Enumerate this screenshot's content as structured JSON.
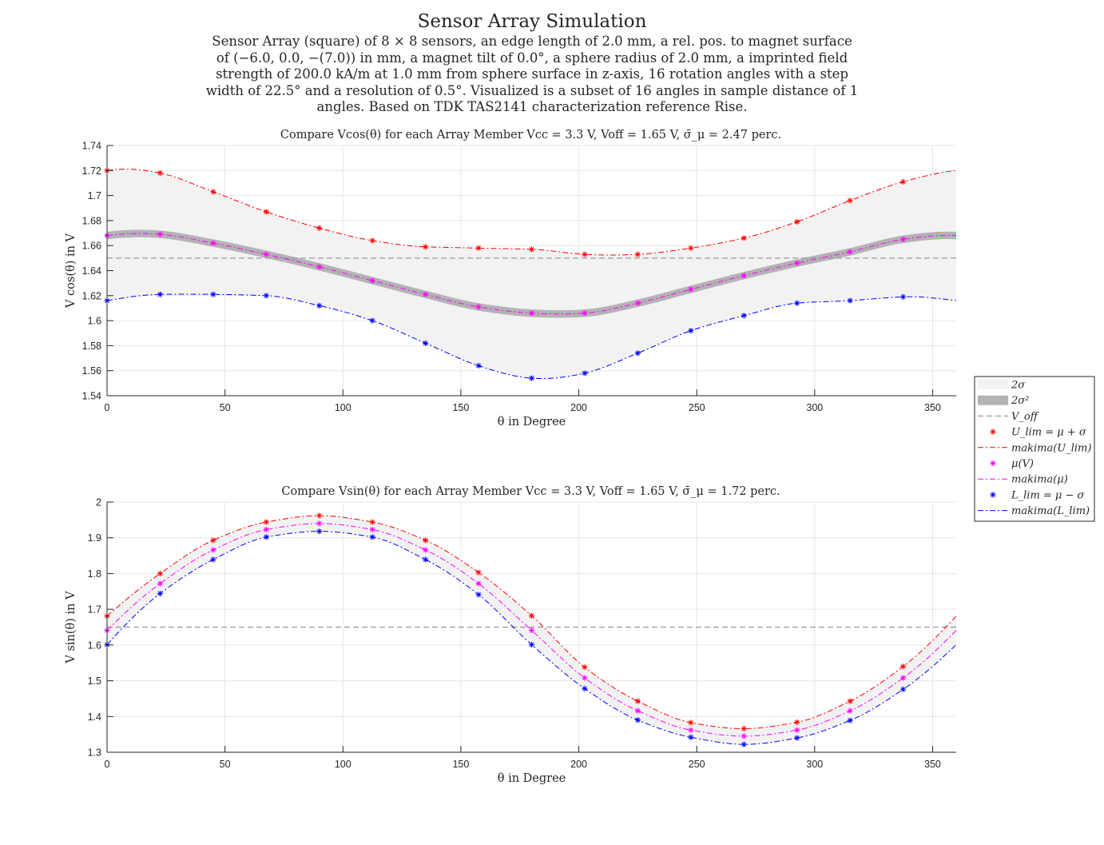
{
  "figure": {
    "title": "Sensor Array Simulation",
    "subtitle": "Sensor Array (square) of 8 × 8 sensors, an edge length of 2.0 mm, a rel. pos. to magnet surface of (−6.0, 0.0, −(7.0)) in mm, a magnet tilt of 0.0°, a sphere radius of 2.0 mm, a imprinted field strength of 200.0 kA/m at 1.0 mm from sphere surface in z-axis, 16 rotation angles with a step width of 22.5° and a resolution of 0.5°. Visualized is a subset of 16 angles in sample distance of 1 angles. Based on TDK TAS2141 characterization reference Rise."
  },
  "legend": {
    "placement": "right-middle",
    "entries": [
      {
        "label": "2σ",
        "kind": "band",
        "color": "#f2f2f2"
      },
      {
        "label": "2σ²",
        "kind": "band",
        "color": "#b3b3b3"
      },
      {
        "label": "V_off",
        "kind": "dashed",
        "color": "#999999"
      },
      {
        "label": "U_lim = μ + σ",
        "kind": "marker",
        "color": "#ff0000"
      },
      {
        "label": "makima(U_lim)",
        "kind": "dashdot",
        "color": "#ff0000"
      },
      {
        "label": "μ(V)",
        "kind": "marker",
        "color": "#ff00ff"
      },
      {
        "label": "makima(μ)",
        "kind": "dashdot",
        "color": "#ff00ff"
      },
      {
        "label": "L_lim = μ − σ",
        "kind": "marker",
        "color": "#0000ff"
      },
      {
        "label": "makima(L_lim)",
        "kind": "dashdot",
        "color": "#0000ff"
      }
    ]
  },
  "colors": {
    "upper": "#ff0000",
    "mean": "#ff00ff",
    "lower": "#0000ff",
    "offset": "#999999",
    "band": "#f2f2f2",
    "band2": "#b3b3b3",
    "grid": "#e6e6e6"
  },
  "chart_data": [
    {
      "type": "line",
      "title": "Compare V_cos(θ) for each Array Member V_cc = 3.3 V, V_off = 1.65 V, σ̄_μ = 2.47 perc.",
      "xlabel": "θ in Degree",
      "ylabel": "V cos(θ) in V",
      "xlim": [
        0,
        360
      ],
      "ylim": [
        1.54,
        1.74
      ],
      "xticks": [
        0,
        50,
        100,
        150,
        200,
        250,
        300,
        350
      ],
      "yticks": [
        1.54,
        1.56,
        1.58,
        1.6,
        1.62,
        1.64,
        1.66,
        1.68,
        1.7,
        1.72,
        1.74
      ],
      "grid": true,
      "offset": 1.65,
      "x": [
        0,
        22.5,
        45,
        67.5,
        90,
        112.5,
        135,
        157.5,
        180,
        202.5,
        225,
        247.5,
        270,
        292.5,
        315,
        337.5
      ],
      "series": [
        {
          "name": "U_lim = μ + σ",
          "role": "upper",
          "values": [
            1.72,
            1.718,
            1.703,
            1.687,
            1.674,
            1.664,
            1.659,
            1.658,
            1.657,
            1.653,
            1.653,
            1.658,
            1.666,
            1.679,
            1.696,
            1.711
          ]
        },
        {
          "name": "μ(V)",
          "role": "mean",
          "values": [
            1.668,
            1.669,
            1.662,
            1.653,
            1.643,
            1.632,
            1.621,
            1.611,
            1.606,
            1.606,
            1.614,
            1.625,
            1.636,
            1.646,
            1.655,
            1.665
          ]
        },
        {
          "name": "L_lim = μ − σ",
          "role": "lower",
          "values": [
            1.616,
            1.621,
            1.621,
            1.62,
            1.612,
            1.6,
            1.582,
            1.564,
            1.554,
            1.558,
            1.574,
            1.592,
            1.604,
            1.614,
            1.616,
            1.619
          ]
        }
      ],
      "sigma2_halfwidth": 0.003
    },
    {
      "type": "line",
      "title": "Compare V_sin(θ) for each Array Member V_cc = 3.3 V, V_off = 1.65 V, σ̄_μ = 1.72 perc.",
      "xlabel": "θ in Degree",
      "ylabel": "V sin(θ) in V",
      "xlim": [
        0,
        360
      ],
      "ylim": [
        1.3,
        2.0
      ],
      "xticks": [
        0,
        50,
        100,
        150,
        200,
        250,
        300,
        350
      ],
      "yticks": [
        1.3,
        1.4,
        1.5,
        1.6,
        1.7,
        1.8,
        1.9,
        2.0
      ],
      "grid": true,
      "offset": 1.65,
      "x": [
        0,
        22.5,
        45,
        67.5,
        90,
        112.5,
        135,
        157.5,
        180,
        202.5,
        225,
        247.5,
        270,
        292.5,
        315,
        337.5
      ],
      "series": [
        {
          "name": "U_lim = μ + σ",
          "role": "upper",
          "values": [
            1.681,
            1.8,
            1.893,
            1.944,
            1.962,
            1.944,
            1.893,
            1.803,
            1.682,
            1.538,
            1.443,
            1.383,
            1.366,
            1.384,
            1.443,
            1.54
          ]
        },
        {
          "name": "μ(V)",
          "role": "mean",
          "values": [
            1.641,
            1.772,
            1.866,
            1.923,
            1.94,
            1.923,
            1.866,
            1.772,
            1.641,
            1.508,
            1.416,
            1.362,
            1.345,
            1.362,
            1.416,
            1.508
          ]
        },
        {
          "name": "L_lim = μ − σ",
          "role": "lower",
          "values": [
            1.601,
            1.744,
            1.839,
            1.902,
            1.918,
            1.902,
            1.839,
            1.741,
            1.601,
            1.478,
            1.39,
            1.342,
            1.322,
            1.34,
            1.389,
            1.476
          ]
        }
      ],
      "sigma2_halfwidth": 0.0
    }
  ]
}
